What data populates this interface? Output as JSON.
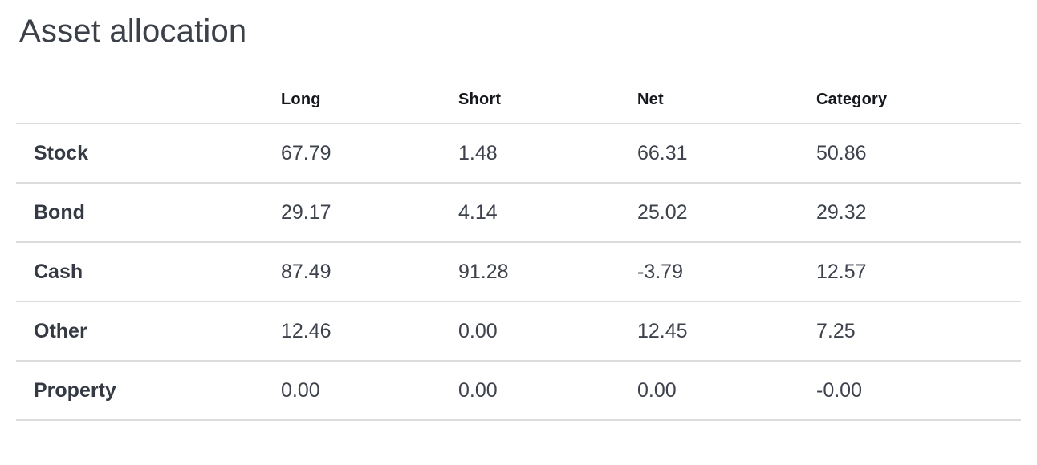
{
  "page": {
    "title": "Asset allocation"
  },
  "colors": {
    "background": "#ffffff",
    "title_text": "#3b4049",
    "header_text": "#14171c",
    "label_text": "#343943",
    "value_text": "#3d424c",
    "divider": "#dcdcdc"
  },
  "table": {
    "columns": [
      "",
      "Long",
      "Short",
      "Net",
      "Category"
    ],
    "rows": [
      {
        "label": "Stock",
        "values": [
          "67.79",
          "1.48",
          "66.31",
          "50.86"
        ]
      },
      {
        "label": "Bond",
        "values": [
          "29.17",
          "4.14",
          "25.02",
          "29.32"
        ]
      },
      {
        "label": "Cash",
        "values": [
          "87.49",
          "91.28",
          "-3.79",
          "12.57"
        ]
      },
      {
        "label": "Other",
        "values": [
          "12.46",
          "0.00",
          "12.45",
          "7.25"
        ]
      },
      {
        "label": "Property",
        "values": [
          "0.00",
          "0.00",
          "0.00",
          "-0.00"
        ]
      }
    ]
  },
  "chart_data": {
    "type": "table",
    "title": "Asset allocation",
    "categories": [
      "Stock",
      "Bond",
      "Cash",
      "Other",
      "Property"
    ],
    "series": [
      {
        "name": "Long",
        "values": [
          67.79,
          29.17,
          87.49,
          12.46,
          0.0
        ]
      },
      {
        "name": "Short",
        "values": [
          1.48,
          4.14,
          91.28,
          0.0,
          0.0
        ]
      },
      {
        "name": "Net",
        "values": [
          66.31,
          25.02,
          -3.79,
          12.45,
          0.0
        ]
      },
      {
        "name": "Category",
        "values": [
          50.86,
          29.32,
          12.57,
          7.25,
          -0.0
        ]
      }
    ]
  }
}
